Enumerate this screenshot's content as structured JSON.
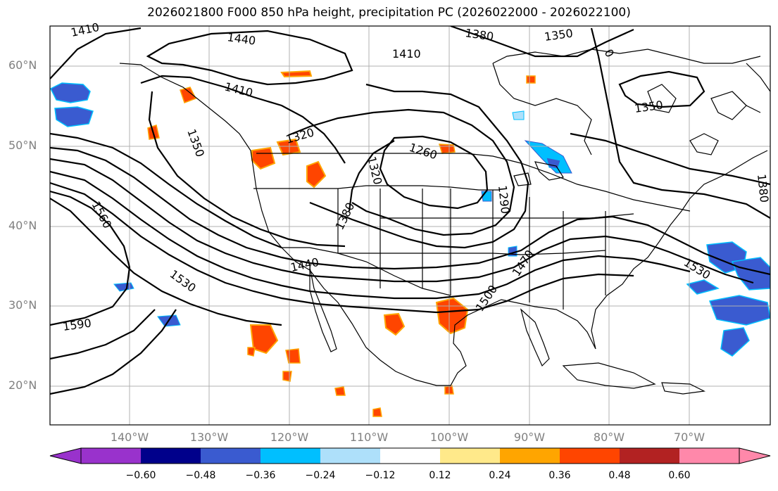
{
  "title": "2026021800 F000 850 hPa height, precipitation PC (2026022000 - 2026022100)",
  "lat_labels": [
    "60°N",
    "50°N",
    "40°N",
    "30°N",
    "20°N"
  ],
  "lon_labels": [
    "140°W",
    "130°W",
    "120°W",
    "110°W",
    "100°W",
    "90°W",
    "80°W",
    "70°W"
  ],
  "contour_labels": [
    "1410",
    "1440",
    "1380",
    "1350",
    "1410",
    "1410",
    "1350",
    "1320",
    "1350",
    "1260",
    "1320",
    "1290",
    "1380",
    "1380",
    "1560",
    "1440",
    "1470",
    "1530",
    "1530",
    "1500",
    "1590",
    "0"
  ],
  "colorbar": {
    "ticks": [
      "−0.60",
      "−0.48",
      "−0.36",
      "−0.24",
      "−0.12",
      "0.12",
      "0.24",
      "0.36",
      "0.48",
      "0.60"
    ],
    "colors": [
      "#9932cc",
      "#00008b",
      "#3a5bd0",
      "#00bfff",
      "#aee0fa",
      "#ffffff",
      "#ffe98a",
      "#ffa500",
      "#ff4500",
      "#b22222",
      "#ff88aa"
    ]
  }
}
